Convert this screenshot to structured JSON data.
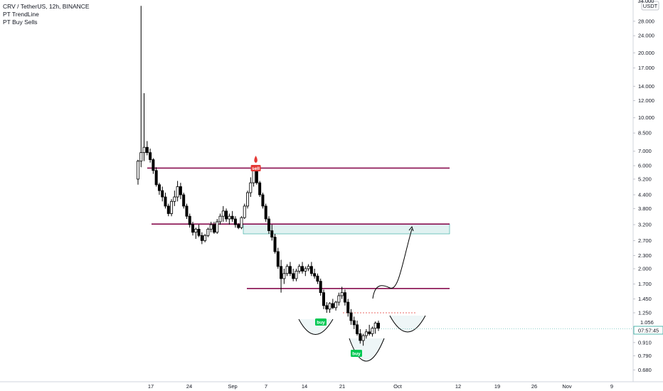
{
  "legend": {
    "symbol": "CRV / TetherUS, 12h, BINANCE",
    "indicator1": "PT TrendLine",
    "indicator2": "PT Buy Sells"
  },
  "axis": {
    "currency": "USDT",
    "top_label": "34.000",
    "y_ticks": [
      "28.000",
      "24.000",
      "20.000",
      "17.000",
      "14.000",
      "12.000",
      "10.000",
      "8.500",
      "7.000",
      "6.000",
      "5.200",
      "4.400",
      "3.800",
      "3.200",
      "2.700",
      "2.300",
      "2.000",
      "1.700",
      "1.450",
      "1.250",
      "1.056",
      "0.910",
      "0.790",
      "0.680"
    ],
    "x_ticks": [
      "17",
      "24",
      "Sep",
      "7",
      "14",
      "21",
      "Oct",
      "12",
      "19",
      "26",
      "Nov",
      "9"
    ],
    "current_price": "1.056",
    "countdown": "07:57:45"
  },
  "signals": {
    "sell": "sell",
    "buy1": "buy",
    "buy2": "buy"
  },
  "colors": {
    "up": "#ffffff",
    "down": "#000000",
    "line": "#880e4f",
    "buy": "#00c853",
    "sell": "#e53935",
    "zone": "#e0f2f1",
    "accent": "#26a69a"
  },
  "chart_data": {
    "type": "candlestick",
    "symbol": "CRV / TetherUS",
    "interval": "12h",
    "exchange": "BINANCE",
    "scale": "log",
    "x_labels": [
      "17",
      "24",
      "Sep",
      "7",
      "14",
      "21",
      "Oct",
      "12",
      "19",
      "26",
      "Nov",
      "9"
    ],
    "y_ticks": [
      28.0,
      24.0,
      20.0,
      17.0,
      14.0,
      12.0,
      10.0,
      8.5,
      7.0,
      6.0,
      5.2,
      4.4,
      3.8,
      3.2,
      2.7,
      2.3,
      2.0,
      1.7,
      1.45,
      1.25,
      1.056,
      0.91,
      0.79,
      0.68
    ],
    "horizontal_levels": [
      5.85,
      3.22,
      1.62
    ],
    "current_price": 1.056,
    "candles": [
      [
        5.2,
        6.4,
        4.9,
        6.3
      ],
      [
        6.3,
        33.0,
        5.9,
        6.9
      ],
      [
        6.9,
        13.0,
        6.3,
        7.3
      ],
      [
        7.3,
        7.8,
        6.7,
        6.9
      ],
      [
        6.9,
        7.2,
        6.2,
        6.4
      ],
      [
        6.4,
        6.5,
        5.5,
        5.7
      ],
      [
        5.7,
        5.9,
        4.8,
        4.9
      ],
      [
        4.9,
        5.0,
        4.4,
        4.6
      ],
      [
        4.6,
        4.8,
        4.1,
        4.3
      ],
      [
        4.3,
        4.5,
        3.8,
        3.9
      ],
      [
        3.9,
        4.0,
        3.5,
        3.6
      ],
      [
        3.6,
        4.2,
        3.5,
        4.1
      ],
      [
        4.1,
        4.6,
        3.9,
        4.3
      ],
      [
        4.3,
        5.1,
        4.1,
        4.8
      ],
      [
        4.8,
        5.0,
        4.2,
        4.4
      ],
      [
        4.4,
        4.5,
        3.8,
        3.9
      ],
      [
        3.9,
        4.0,
        3.4,
        3.5
      ],
      [
        3.5,
        3.6,
        3.1,
        3.2
      ],
      [
        3.2,
        3.3,
        2.85,
        2.95
      ],
      [
        2.95,
        3.1,
        2.75,
        3.05
      ],
      [
        3.05,
        3.2,
        2.8,
        2.85
      ],
      [
        2.85,
        2.95,
        2.6,
        2.7
      ],
      [
        2.7,
        2.9,
        2.65,
        2.85
      ],
      [
        2.85,
        3.1,
        2.8,
        3.05
      ],
      [
        3.05,
        3.3,
        2.95,
        3.2
      ],
      [
        3.2,
        3.3,
        2.9,
        2.95
      ],
      [
        2.95,
        3.4,
        2.9,
        3.3
      ],
      [
        3.3,
        3.6,
        3.2,
        3.5
      ],
      [
        3.5,
        3.9,
        3.3,
        3.7
      ],
      [
        3.7,
        3.8,
        3.3,
        3.4
      ],
      [
        3.4,
        3.6,
        3.2,
        3.5
      ],
      [
        3.5,
        3.7,
        3.3,
        3.4
      ],
      [
        3.4,
        3.5,
        3.1,
        3.2
      ],
      [
        3.2,
        3.25,
        3.05,
        3.1
      ],
      [
        3.1,
        3.5,
        3.05,
        3.45
      ],
      [
        3.45,
        4.0,
        3.4,
        3.9
      ],
      [
        3.9,
        4.6,
        3.8,
        4.5
      ],
      [
        4.5,
        5.3,
        4.3,
        5.0
      ],
      [
        5.0,
        5.9,
        4.8,
        5.7
      ],
      [
        5.7,
        5.9,
        4.9,
        5.0
      ],
      [
        5.0,
        5.1,
        4.3,
        4.4
      ],
      [
        4.4,
        4.5,
        3.8,
        3.9
      ],
      [
        3.9,
        4.0,
        3.3,
        3.4
      ],
      [
        3.4,
        3.5,
        2.9,
        3.0
      ],
      [
        3.0,
        3.2,
        2.7,
        2.8
      ],
      [
        2.8,
        2.9,
        2.35,
        2.4
      ],
      [
        2.4,
        2.5,
        2.0,
        2.05
      ],
      [
        2.05,
        2.2,
        1.55,
        1.8
      ],
      [
        1.8,
        2.0,
        1.7,
        1.9
      ],
      [
        1.9,
        2.1,
        1.85,
        2.05
      ],
      [
        2.05,
        2.15,
        1.85,
        1.9
      ],
      [
        1.9,
        2.0,
        1.75,
        1.8
      ],
      [
        1.8,
        2.0,
        1.75,
        1.95
      ],
      [
        1.95,
        2.1,
        1.9,
        2.05
      ],
      [
        2.05,
        2.15,
        1.9,
        1.95
      ],
      [
        1.95,
        2.05,
        1.85,
        2.0
      ],
      [
        2.0,
        2.1,
        1.95,
        2.05
      ],
      [
        2.05,
        2.15,
        1.85,
        1.9
      ],
      [
        1.9,
        2.0,
        1.8,
        1.85
      ],
      [
        1.85,
        1.9,
        1.7,
        1.75
      ],
      [
        1.75,
        1.8,
        1.5,
        1.55
      ],
      [
        1.55,
        1.6,
        1.3,
        1.35
      ],
      [
        1.35,
        1.4,
        1.25,
        1.3
      ],
      [
        1.3,
        1.4,
        1.25,
        1.38
      ],
      [
        1.38,
        1.45,
        1.3,
        1.32
      ],
      [
        1.32,
        1.42,
        1.28,
        1.4
      ],
      [
        1.4,
        1.55,
        1.35,
        1.5
      ],
      [
        1.5,
        1.65,
        1.45,
        1.55
      ],
      [
        1.55,
        1.6,
        1.35,
        1.4
      ],
      [
        1.4,
        1.45,
        1.2,
        1.25
      ],
      [
        1.25,
        1.3,
        1.1,
        1.15
      ],
      [
        1.15,
        1.2,
        1.05,
        1.1
      ],
      [
        1.1,
        1.15,
        0.98,
        1.0
      ],
      [
        1.0,
        1.05,
        0.9,
        0.93
      ],
      [
        0.93,
        1.0,
        0.88,
        0.98
      ],
      [
        0.98,
        1.05,
        0.95,
        1.02
      ],
      [
        1.02,
        1.1,
        0.98,
        1.0
      ],
      [
        1.0,
        1.08,
        0.97,
        1.06
      ],
      [
        1.06,
        1.14,
        1.0,
        1.12
      ],
      [
        1.12,
        1.15,
        1.03,
        1.06
      ]
    ]
  }
}
